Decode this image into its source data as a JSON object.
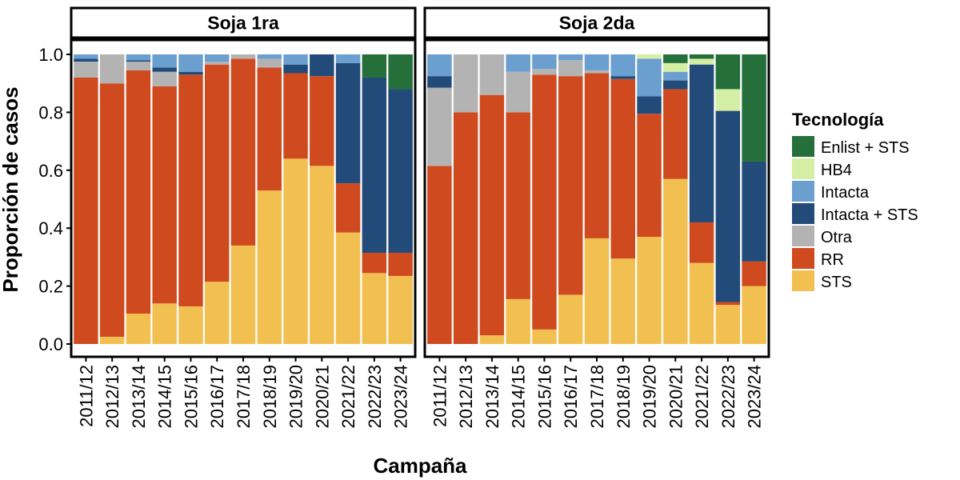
{
  "chart_data": {
    "type": "bar",
    "stacked": true,
    "ylabel": "Proporción de casos",
    "xlabel": "Campaña",
    "ylim": [
      0,
      1
    ],
    "yticks": [
      "0.0",
      "0.2",
      "0.4",
      "0.6",
      "0.8",
      "1.0"
    ],
    "legend": {
      "title": "Tecnología",
      "position": "right",
      "entries": [
        {
          "name": "Enlist + STS",
          "color": "#25703a"
        },
        {
          "name": "HB4",
          "color": "#d4eea4"
        },
        {
          "name": "Intacta",
          "color": "#6a9fd0"
        },
        {
          "name": "Intacta + STS",
          "color": "#234b7a"
        },
        {
          "name": "Otra",
          "color": "#b3b3b3"
        },
        {
          "name": "RR",
          "color": "#cf4b1f"
        },
        {
          "name": "STS",
          "color": "#f2bf51"
        }
      ]
    },
    "stack_order": [
      "STS",
      "RR",
      "Otra",
      "Intacta + STS",
      "Intacta",
      "HB4",
      "Enlist + STS"
    ],
    "panels": [
      {
        "title": "Soja 1ra",
        "categories": [
          "2011/12",
          "2012/13",
          "2013/14",
          "2014/15",
          "2015/16",
          "2016/17",
          "2017/18",
          "2018/19",
          "2019/20",
          "2020/21",
          "2021/22",
          "2022/23",
          "2023/24"
        ],
        "series": [
          {
            "name": "STS",
            "values": [
              0.0,
              0.025,
              0.105,
              0.14,
              0.13,
              0.215,
              0.34,
              0.53,
              0.64,
              0.615,
              0.385,
              0.245,
              0.235
            ]
          },
          {
            "name": "RR",
            "values": [
              0.92,
              0.875,
              0.84,
              0.75,
              0.8,
              0.75,
              0.645,
              0.425,
              0.295,
              0.31,
              0.17,
              0.07,
              0.08
            ]
          },
          {
            "name": "Otra",
            "values": [
              0.055,
              0.1,
              0.03,
              0.05,
              0.0,
              0.01,
              0.015,
              0.03,
              0.0,
              0.0,
              0.0,
              0.0,
              0.0
            ]
          },
          {
            "name": "Intacta + STS",
            "values": [
              0.01,
              0.0,
              0.005,
              0.015,
              0.01,
              0.0,
              0.0,
              0.0,
              0.03,
              0.075,
              0.415,
              0.605,
              0.565
            ]
          },
          {
            "name": "Intacta",
            "values": [
              0.015,
              0.0,
              0.02,
              0.045,
              0.06,
              0.025,
              0.0,
              0.015,
              0.035,
              0.0,
              0.03,
              0.0,
              0.0
            ]
          },
          {
            "name": "HB4",
            "values": [
              0,
              0,
              0,
              0,
              0,
              0,
              0,
              0,
              0,
              0,
              0,
              0,
              0
            ]
          },
          {
            "name": "Enlist + STS",
            "values": [
              0,
              0,
              0,
              0,
              0,
              0,
              0,
              0,
              0,
              0,
              0,
              0.08,
              0.12
            ]
          }
        ]
      },
      {
        "title": "Soja 2da",
        "categories": [
          "2011/12",
          "2012/13",
          "2013/14",
          "2014/15",
          "2015/16",
          "2016/17",
          "2017/18",
          "2018/19",
          "2019/20",
          "2020/21",
          "2021/22",
          "2022/23",
          "2023/24"
        ],
        "series": [
          {
            "name": "STS",
            "values": [
              0.0,
              0.0,
              0.03,
              0.155,
              0.05,
              0.17,
              0.365,
              0.295,
              0.37,
              0.57,
              0.28,
              0.135,
              0.2
            ]
          },
          {
            "name": "RR",
            "values": [
              0.615,
              0.8,
              0.83,
              0.645,
              0.88,
              0.755,
              0.57,
              0.62,
              0.425,
              0.31,
              0.14,
              0.01,
              0.085
            ]
          },
          {
            "name": "Otra",
            "values": [
              0.27,
              0.2,
              0.14,
              0.14,
              0.02,
              0.055,
              0.01,
              0.0,
              0.0,
              0.0,
              0.0,
              0.0,
              0.0
            ]
          },
          {
            "name": "Intacta + STS",
            "values": [
              0.04,
              0.0,
              0.0,
              0.0,
              0.0,
              0.0,
              0.0,
              0.01,
              0.06,
              0.03,
              0.545,
              0.66,
              0.345
            ]
          },
          {
            "name": "Intacta",
            "values": [
              0.075,
              0.0,
              0.0,
              0.06,
              0.05,
              0.02,
              0.055,
              0.075,
              0.13,
              0.03,
              0.0,
              0.0,
              0.0
            ]
          },
          {
            "name": "HB4",
            "values": [
              0.0,
              0.0,
              0.0,
              0.0,
              0.0,
              0.0,
              0.0,
              0.0,
              0.015,
              0.03,
              0.02,
              0.075,
              0.0
            ]
          },
          {
            "name": "Enlist + STS",
            "values": [
              0.0,
              0.0,
              0.0,
              0.0,
              0.0,
              0.0,
              0.0,
              0.0,
              0.0,
              0.03,
              0.015,
              0.12,
              0.37
            ]
          }
        ]
      }
    ]
  }
}
